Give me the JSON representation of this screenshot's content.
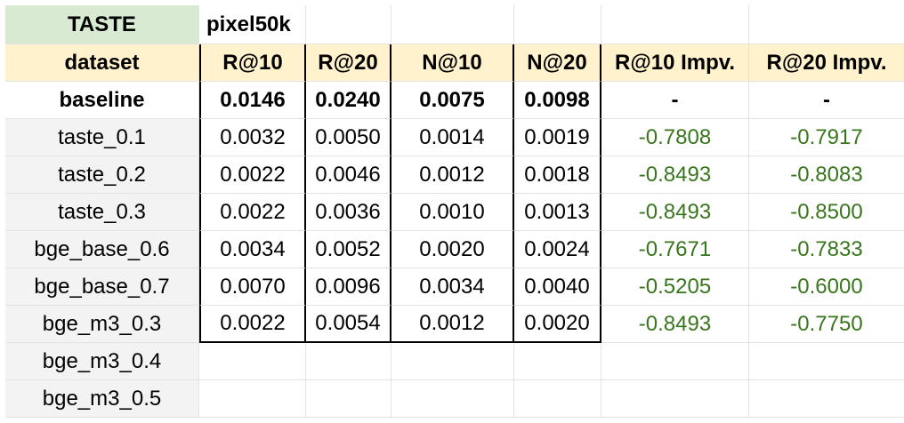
{
  "sheet": {
    "title_row": {
      "label": "TASTE",
      "value": "pixel50k"
    },
    "headers": [
      "dataset",
      "R@10",
      "R@20",
      "N@10",
      "N@20",
      "R@10 Impv.",
      "R@20 Impv."
    ],
    "baseline": [
      "baseline",
      "0.0146",
      "0.0240",
      "0.0075",
      "0.0098",
      "-",
      "-"
    ],
    "rows": [
      [
        "taste_0.1",
        "0.0032",
        "0.0050",
        "0.0014",
        "0.0019",
        "-0.7808",
        "-0.7917"
      ],
      [
        "taste_0.2",
        "0.0022",
        "0.0046",
        "0.0012",
        "0.0018",
        "-0.8493",
        "-0.8083"
      ],
      [
        "taste_0.3",
        "0.0022",
        "0.0036",
        "0.0010",
        "0.0013",
        "-0.8493",
        "-0.8500"
      ],
      [
        "bge_base_0.6",
        "0.0034",
        "0.0052",
        "0.0020",
        "0.0024",
        "-0.7671",
        "-0.7833"
      ],
      [
        "bge_base_0.7",
        "0.0070",
        "0.0096",
        "0.0034",
        "0.0040",
        "-0.5205",
        "-0.6000"
      ],
      [
        "bge_m3_0.3",
        "0.0022",
        "0.0054",
        "0.0012",
        "0.0020",
        "-0.8493",
        "-0.7750"
      ],
      [
        "bge_m3_0.4",
        "",
        "",
        "",
        "",
        "",
        ""
      ],
      [
        "bge_m3_0.5",
        "",
        "",
        "",
        "",
        "",
        ""
      ]
    ],
    "colors": {
      "title_fill": "#d9ead3",
      "header_fill": "#fff2cc",
      "label_fill": "#f3f3f3",
      "improvement_text": "#38761d"
    }
  }
}
